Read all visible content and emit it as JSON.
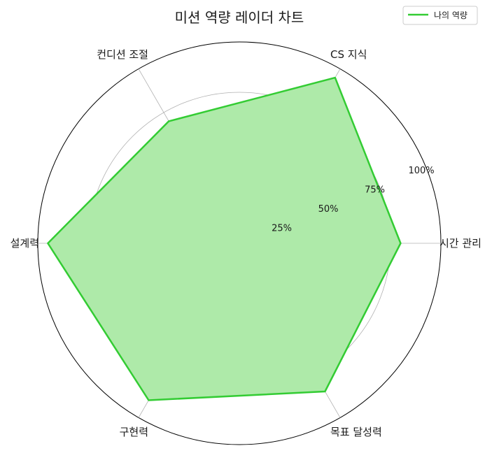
{
  "chart_data": {
    "type": "radar",
    "title": "미션 역량 레이더 차트",
    "categories": [
      "시간 관리",
      "CS 지식",
      "컨디션 조절",
      "설계력",
      "구현력",
      "목표 달성력"
    ],
    "series": [
      {
        "name": "나의 역량",
        "values": [
          80,
          95,
          70,
          95,
          90,
          85
        ]
      }
    ],
    "rlim": [
      0,
      100
    ],
    "r_ticks": [
      25,
      50,
      75,
      100
    ],
    "r_tick_labels": [
      "25%",
      "50%",
      "75%",
      "100%"
    ],
    "grid": true,
    "legend_position": "top-right",
    "colors": {
      "line": "#33cc33",
      "fill": "#aeeaa9",
      "grid": "#b0b0b0",
      "frame": "#000000"
    }
  }
}
